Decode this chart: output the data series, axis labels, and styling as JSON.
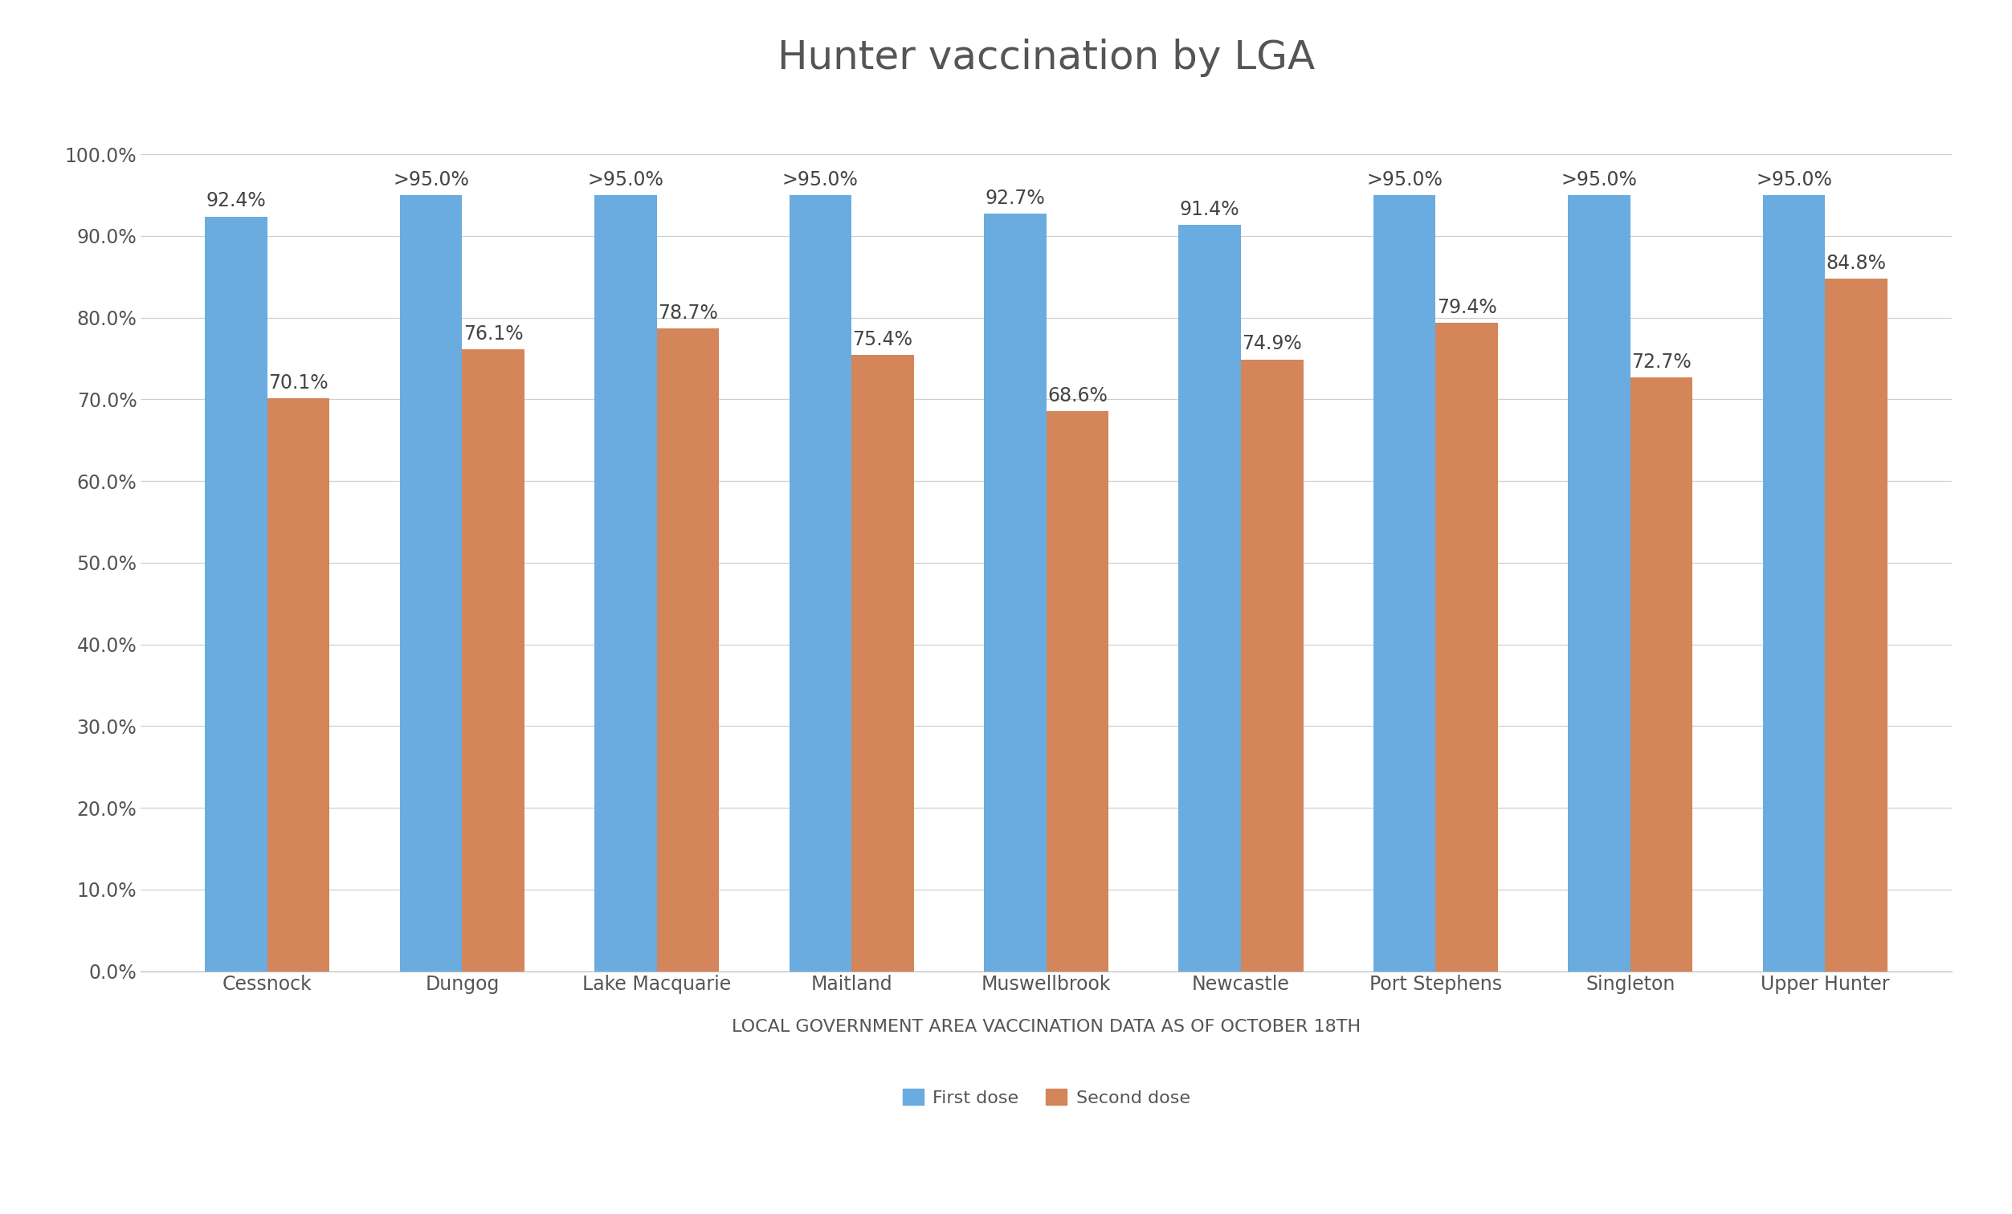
{
  "title": "Hunter vaccination by LGA",
  "xlabel": "LOCAL GOVERNMENT AREA VACCINATION DATA AS OF OCTOBER 18TH",
  "categories": [
    "Cessnock",
    "Dungog",
    "Lake Macquarie",
    "Maitland",
    "Muswellbrook",
    "Newcastle",
    "Port Stephens",
    "Singleton",
    "Upper Hunter"
  ],
  "first_dose": [
    92.4,
    95.0,
    95.0,
    95.0,
    92.7,
    91.4,
    95.0,
    95.0,
    95.0
  ],
  "second_dose": [
    70.1,
    76.1,
    78.7,
    75.4,
    68.6,
    74.9,
    79.4,
    72.7,
    84.8
  ],
  "first_dose_labels": [
    "92.4%",
    ">95.0%",
    ">95.0%",
    ">95.0%",
    "92.7%",
    "91.4%",
    ">95.0%",
    ">95.0%",
    ">95.0%"
  ],
  "second_dose_labels": [
    "70.1%",
    "76.1%",
    "78.7%",
    "75.4%",
    "68.6%",
    "74.9%",
    "79.4%",
    "72.7%",
    "84.8%"
  ],
  "first_dose_color": "#6aace0",
  "second_dose_color": "#d4855a",
  "bar_width": 0.32,
  "ylim": [
    0,
    107
  ],
  "yticks": [
    0,
    10,
    20,
    30,
    40,
    50,
    60,
    70,
    80,
    90,
    100
  ],
  "ytick_labels": [
    "0.0%",
    "10.0%",
    "20.0%",
    "30.0%",
    "40.0%",
    "50.0%",
    "60.0%",
    "70.0%",
    "80.0%",
    "90.0%",
    "100.0%"
  ],
  "legend_labels": [
    "First dose",
    "Second dose"
  ],
  "title_fontsize": 36,
  "label_fontsize": 16,
  "tick_fontsize": 17,
  "bar_label_fontsize": 17,
  "xlabel_fontsize": 16,
  "background_color": "#ffffff",
  "grid_color": "#d0d0d0",
  "text_color": "#555555",
  "bar_label_color": "#444444"
}
